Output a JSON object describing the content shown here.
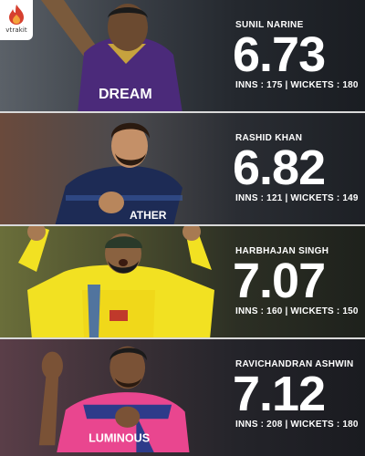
{
  "brand": {
    "name": "vtrakit",
    "accent": "#d6402f"
  },
  "players": [
    {
      "name": "SUNIL NARINE",
      "economy": "6.73",
      "stats": "INNS : 175 | WICKETS : 180",
      "jersey_color": "#4b2a7a",
      "jersey_text": "DREAM"
    },
    {
      "name": "RASHID KHAN",
      "economy": "6.82",
      "stats": "INNS : 121 | WICKETS : 149",
      "jersey_color": "#1d2b55",
      "jersey_text": "ATHER"
    },
    {
      "name": "HARBHAJAN SINGH",
      "economy": "7.07",
      "stats": "INNS : 160 | WICKETS : 150",
      "jersey_color": "#f2e122",
      "jersey_text": ""
    },
    {
      "name": "RAVICHANDRAN ASHWIN",
      "economy": "7.12",
      "stats": "INNS : 208 | WICKETS : 180",
      "jersey_color": "#e9468f",
      "jersey_text": "LUMINOUS"
    }
  ]
}
